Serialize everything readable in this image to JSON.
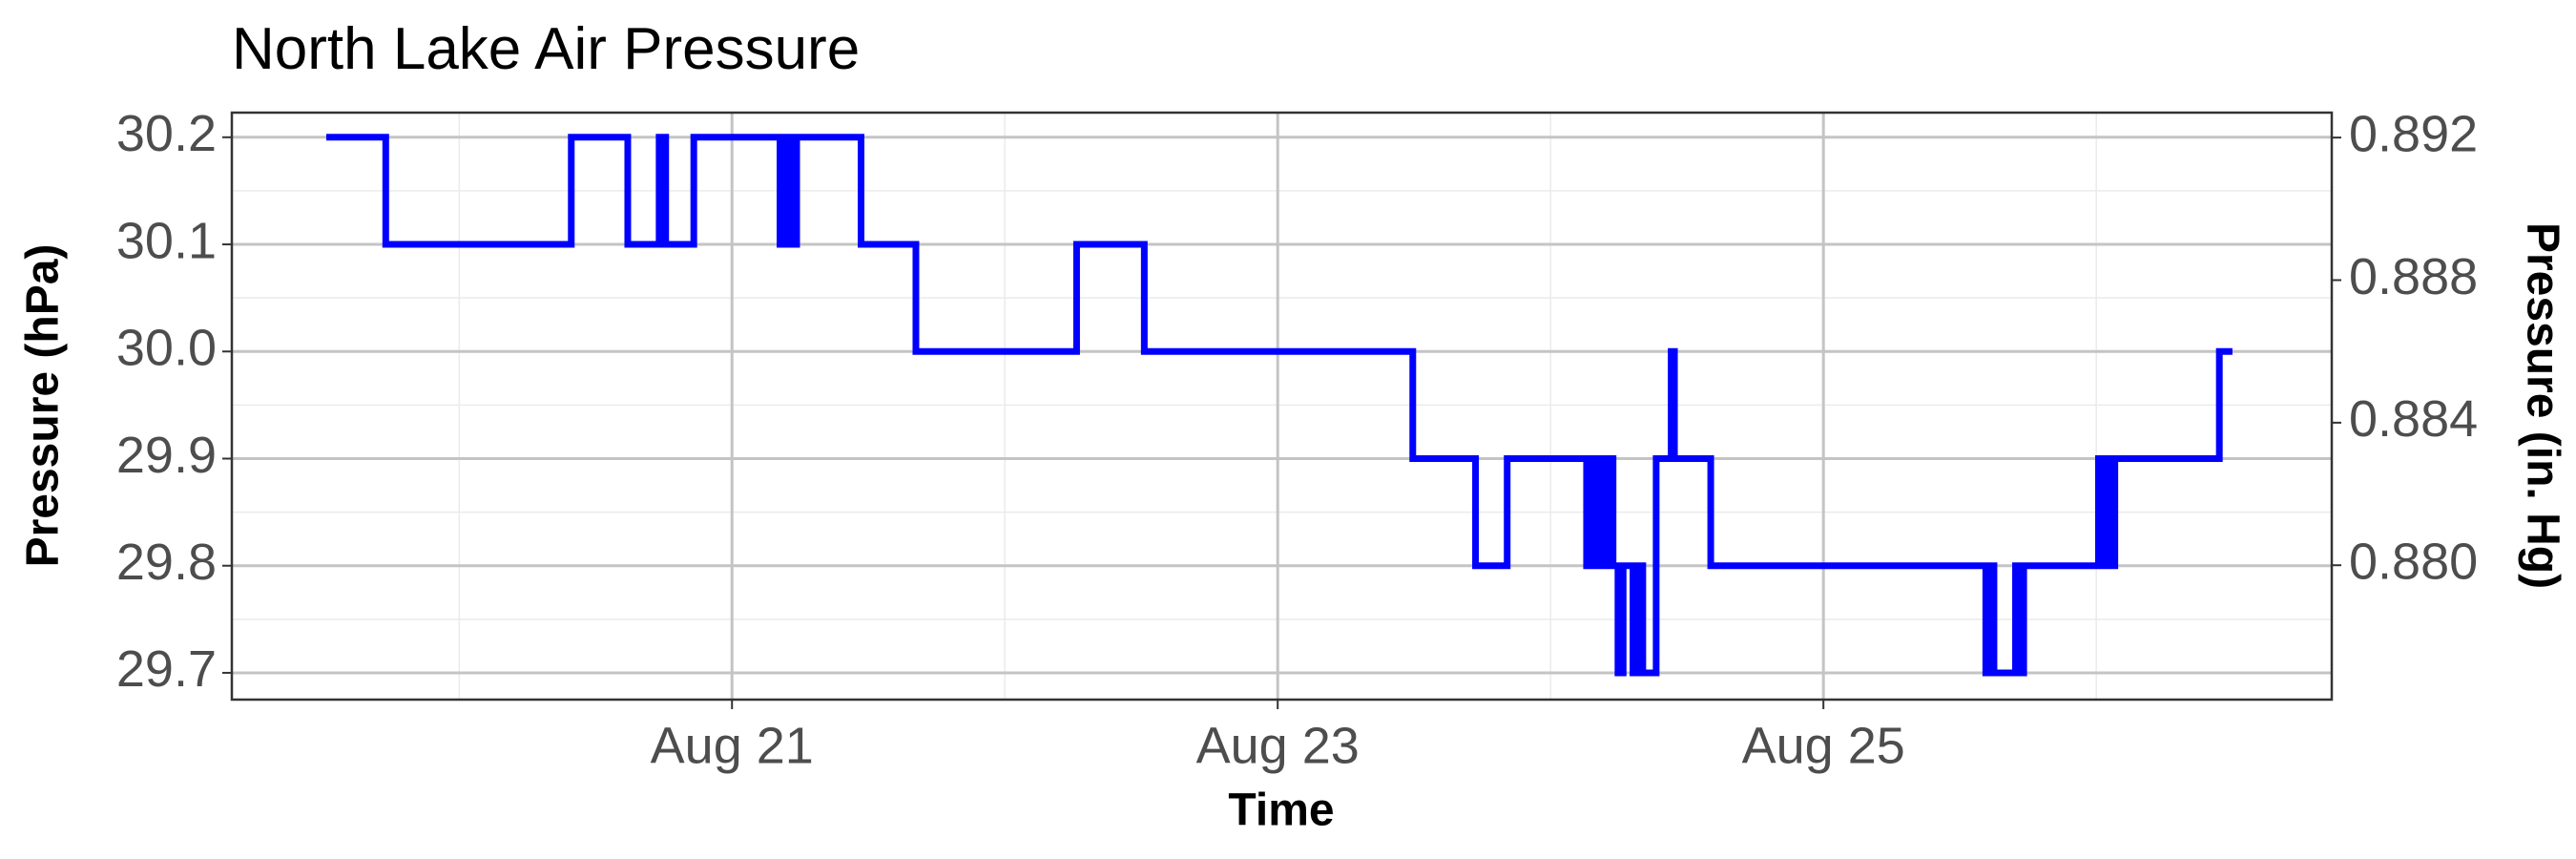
{
  "chart_data": {
    "type": "line",
    "step": "hv",
    "title": "North Lake Air Pressure",
    "x_label": "Time",
    "y_label": "Pressure (hPa)",
    "y2_label": "Pressure (in. Hg)",
    "x": [
      19.513,
      19.731,
      20.411,
      20.618,
      20.733,
      20.757,
      20.86,
      21.176,
      21.188,
      21.2,
      21.212,
      21.225,
      21.237,
      21.473,
      21.674,
      22.263,
      22.511,
      23.495,
      23.725,
      23.841,
      24.132,
      24.156,
      24.175,
      24.193,
      24.205,
      24.217,
      24.229,
      24.247,
      24.266,
      24.302,
      24.32,
      24.338,
      24.387,
      24.442,
      24.454,
      24.587,
      25.595,
      25.613,
      25.625,
      25.704,
      25.716,
      25.734,
      26.008,
      26.026,
      26.038,
      26.056,
      26.068,
      26.451,
      26.499
    ],
    "series": [
      {
        "name": "Pressure",
        "color": "#0000ff",
        "values": [
          30.2,
          30.1,
          30.2,
          30.1,
          30.2,
          30.1,
          30.2,
          30.1,
          30.2,
          30.1,
          30.2,
          30.1,
          30.2,
          30.1,
          30.0,
          30.1,
          30.0,
          29.9,
          29.8,
          29.9,
          29.8,
          29.9,
          29.8,
          29.9,
          29.8,
          29.9,
          29.8,
          29.7,
          29.8,
          29.7,
          29.8,
          29.7,
          29.9,
          30.0,
          29.9,
          29.8,
          29.7,
          29.8,
          29.7,
          29.8,
          29.7,
          29.8,
          29.9,
          29.8,
          29.9,
          29.8,
          29.9,
          30.0,
          30.0
        ]
      }
    ],
    "xlim": [
      19.167,
      26.863
    ],
    "xticks": [
      {
        "value": 21,
        "label": "Aug 21"
      },
      {
        "value": 23,
        "label": "Aug 23"
      },
      {
        "value": 25,
        "label": "Aug 25"
      }
    ],
    "ylim": [
      29.675,
      30.223
    ],
    "yticks": [
      {
        "value": 29.7,
        "label": "29.7"
      },
      {
        "value": 29.8,
        "label": "29.8"
      },
      {
        "value": 29.9,
        "label": "29.9"
      },
      {
        "value": 30.0,
        "label": "30.0"
      },
      {
        "value": 30.1,
        "label": "30.1"
      },
      {
        "value": 30.2,
        "label": "30.2"
      }
    ],
    "y2lim": [
      0.87623,
      0.8927
    ],
    "y2ticks": [
      {
        "value": 0.88,
        "label": "0.880"
      },
      {
        "value": 0.884,
        "label": "0.884"
      },
      {
        "value": 0.888,
        "label": "0.888"
      },
      {
        "value": 0.892,
        "label": "0.892"
      }
    ],
    "grid": true
  }
}
